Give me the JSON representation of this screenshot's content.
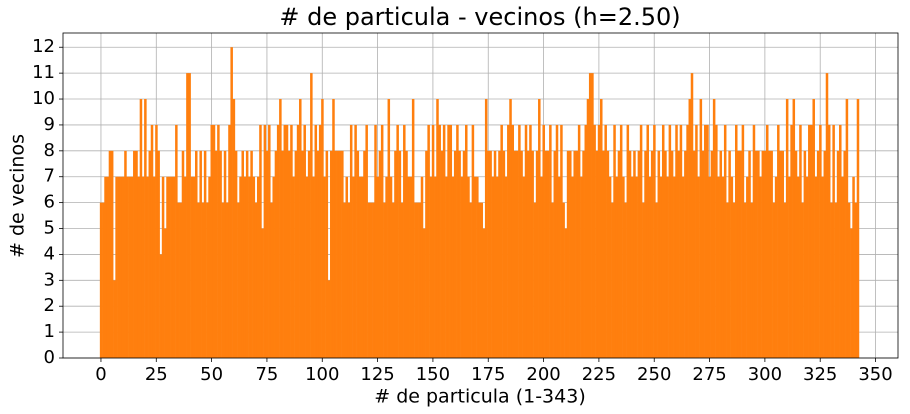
{
  "chart_data": {
    "type": "bar",
    "title": "# de particula - vecinos (h=2.50)",
    "xlabel": "# de particula (1-343)",
    "ylabel": "# de vecinos",
    "color": "#ff7f0e",
    "grid": true,
    "xlim": [
      -17.15,
      360.15
    ],
    "ylim": [
      0,
      12.55
    ],
    "xticks": [
      0,
      25,
      50,
      75,
      100,
      125,
      150,
      175,
      200,
      225,
      250,
      275,
      300,
      325,
      350
    ],
    "yticks": [
      0,
      1,
      2,
      3,
      4,
      5,
      6,
      7,
      8,
      9,
      10,
      11,
      12
    ],
    "x": [
      0,
      1,
      2,
      3,
      4,
      5,
      6,
      7,
      8,
      9,
      10,
      11,
      12,
      13,
      14,
      15,
      16,
      17,
      18,
      19,
      20,
      21,
      22,
      23,
      24,
      25,
      26,
      27,
      28,
      29,
      30,
      31,
      32,
      33,
      34,
      35,
      36,
      37,
      38,
      39,
      40,
      41,
      42,
      43,
      44,
      45,
      46,
      47,
      48,
      49,
      50,
      51,
      52,
      53,
      54,
      55,
      56,
      57,
      58,
      59,
      60,
      61,
      62,
      63,
      64,
      65,
      66,
      67,
      68,
      69,
      70,
      71,
      72,
      73,
      74,
      75,
      76,
      77,
      78,
      79,
      80,
      81,
      82,
      83,
      84,
      85,
      86,
      87,
      88,
      89,
      90,
      91,
      92,
      93,
      94,
      95,
      96,
      97,
      98,
      99,
      100,
      101,
      102,
      103,
      104,
      105,
      106,
      107,
      108,
      109,
      110,
      111,
      112,
      113,
      114,
      115,
      116,
      117,
      118,
      119,
      120,
      121,
      122,
      123,
      124,
      125,
      126,
      127,
      128,
      129,
      130,
      131,
      132,
      133,
      134,
      135,
      136,
      137,
      138,
      139,
      140,
      141,
      142,
      143,
      144,
      145,
      146,
      147,
      148,
      149,
      150,
      151,
      152,
      153,
      154,
      155,
      156,
      157,
      158,
      159,
      160,
      161,
      162,
      163,
      164,
      165,
      166,
      167,
      168,
      169,
      170,
      171,
      172,
      173,
      174,
      175,
      176,
      177,
      178,
      179,
      180,
      181,
      182,
      183,
      184,
      185,
      186,
      187,
      188,
      189,
      190,
      191,
      192,
      193,
      194,
      195,
      196,
      197,
      198,
      199,
      200,
      201,
      202,
      203,
      204,
      205,
      206,
      207,
      208,
      209,
      210,
      211,
      212,
      213,
      214,
      215,
      216,
      217,
      218,
      219,
      220,
      221,
      222,
      223,
      224,
      225,
      226,
      227,
      228,
      229,
      230,
      231,
      232,
      233,
      234,
      235,
      236,
      237,
      238,
      239,
      240,
      241,
      242,
      243,
      244,
      245,
      246,
      247,
      248,
      249,
      250,
      251,
      252,
      253,
      254,
      255,
      256,
      257,
      258,
      259,
      260,
      261,
      262,
      263,
      264,
      265,
      266,
      267,
      268,
      269,
      270,
      271,
      272,
      273,
      274,
      275,
      276,
      277,
      278,
      279,
      280,
      281,
      282,
      283,
      284,
      285,
      286,
      287,
      288,
      289,
      290,
      291,
      292,
      293,
      294,
      295,
      296,
      297,
      298,
      299,
      300,
      301,
      302,
      303,
      304,
      305,
      306,
      307,
      308,
      309,
      310,
      311,
      312,
      313,
      314,
      315,
      316,
      317,
      318,
      319,
      320,
      321,
      322,
      323,
      324,
      325,
      326,
      327,
      328,
      329,
      330,
      331,
      332,
      333,
      334,
      335,
      336,
      337,
      338,
      339,
      340,
      341,
      342
    ],
    "values": [
      6,
      6,
      7,
      7,
      8,
      8,
      3,
      7,
      7,
      7,
      7,
      8,
      7,
      7,
      7,
      8,
      8,
      7,
      10,
      7,
      10,
      7,
      8,
      9,
      7,
      9,
      8,
      4,
      7,
      5,
      7,
      7,
      7,
      7,
      9,
      6,
      6,
      8,
      7,
      11,
      11,
      7,
      7,
      8,
      6,
      8,
      6,
      8,
      6,
      7,
      9,
      9,
      8,
      9,
      8,
      6,
      8,
      6,
      9,
      12,
      10,
      8,
      6,
      7,
      8,
      7,
      8,
      7,
      8,
      7,
      6,
      7,
      9,
      5,
      9,
      8,
      9,
      6,
      7,
      8,
      9,
      10,
      8,
      9,
      9,
      8,
      9,
      7,
      8,
      9,
      10,
      8,
      9,
      7,
      8,
      11,
      7,
      9,
      8,
      9,
      10,
      7,
      8,
      3,
      8,
      10,
      8,
      8,
      8,
      8,
      6,
      7,
      6,
      9,
      7,
      9,
      8,
      7,
      7,
      8,
      9,
      6,
      6,
      6,
      9,
      7,
      8,
      9,
      6,
      7,
      10,
      7,
      6,
      8,
      9,
      8,
      6,
      9,
      8,
      7,
      7,
      10,
      6,
      6,
      6,
      7,
      5,
      8,
      9,
      7,
      9,
      7,
      10,
      9,
      8,
      9,
      7,
      9,
      9,
      7,
      8,
      9,
      8,
      7,
      8,
      9,
      7,
      6,
      9,
      7,
      7,
      6,
      6,
      5,
      10,
      8,
      8,
      7,
      8,
      7,
      8,
      9,
      8,
      7,
      9,
      10,
      9,
      8,
      8,
      9,
      8,
      7,
      9,
      8,
      9,
      8,
      6,
      8,
      10,
      7,
      9,
      8,
      8,
      9,
      6,
      8,
      9,
      7,
      9,
      6,
      5,
      8,
      8,
      7,
      8,
      8,
      9,
      7,
      8,
      9,
      10,
      11,
      11,
      9,
      8,
      9,
      10,
      8,
      9,
      8,
      7,
      6,
      9,
      7,
      8,
      9,
      7,
      6,
      9,
      8,
      7,
      8,
      7,
      8,
      9,
      6,
      8,
      9,
      7,
      8,
      9,
      6,
      8,
      7,
      9,
      8,
      7,
      9,
      8,
      7,
      9,
      8,
      9,
      7,
      8,
      9,
      10,
      11,
      8,
      9,
      7,
      10,
      8,
      9,
      9,
      7,
      8,
      10,
      9,
      7,
      8,
      7,
      9,
      6,
      8,
      7,
      6,
      9,
      8,
      8,
      9,
      6,
      7,
      8,
      6,
      9,
      8,
      8,
      7,
      8,
      8,
      9,
      8,
      8,
      6,
      7,
      9,
      8,
      8,
      6,
      10,
      7,
      9,
      10,
      8,
      7,
      9,
      6,
      8,
      7,
      9,
      9,
      10,
      7,
      8,
      9,
      7,
      8,
      11,
      9,
      6,
      9,
      6,
      8,
      9,
      7,
      8,
      10,
      6,
      5,
      7,
      6,
      10
    ]
  }
}
